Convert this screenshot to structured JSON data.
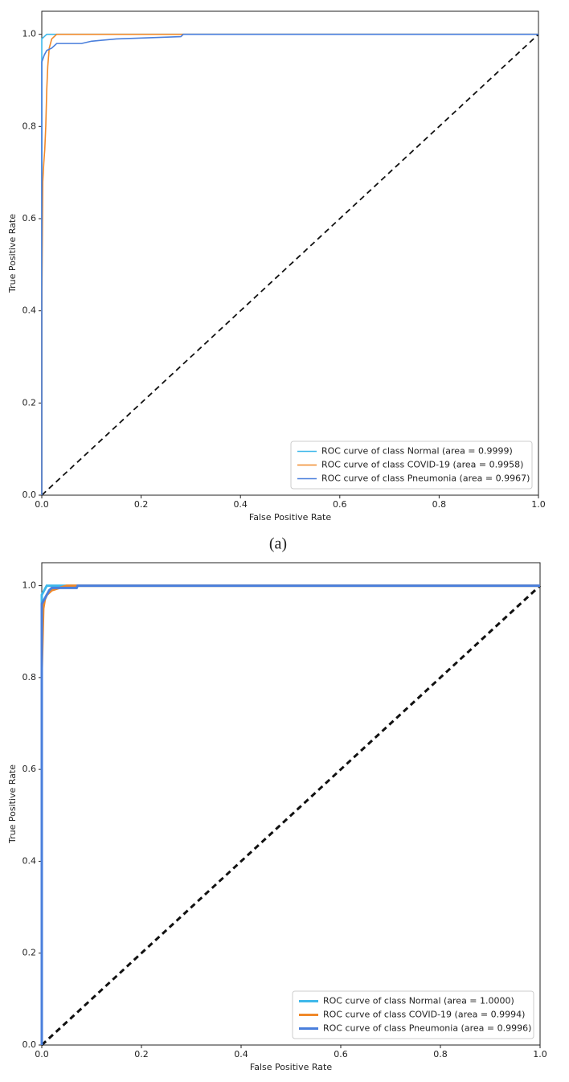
{
  "chart_data": [
    {
      "type": "line",
      "xlabel": "False Positive Rate",
      "ylabel": "True Positive Rate",
      "caption": "(a)",
      "xlim": [
        0,
        1
      ],
      "ylim": [
        0,
        1.05
      ],
      "xticks": [
        {
          "value": 0,
          "label": "0.0"
        },
        0.2,
        0.4,
        0.6,
        0.8,
        {
          "value": 1,
          "label": "1.0"
        }
      ],
      "yticks": [
        {
          "value": 0,
          "label": "0.0"
        },
        0.2,
        0.4,
        0.6,
        0.8,
        {
          "value": 1,
          "label": "1.0"
        }
      ],
      "legend": "lower right",
      "series": [
        {
          "name": "ROC curve of class Normal (area = 0.9999)",
          "color": "#3fb8ea",
          "x": [
            0,
            0,
            0.005,
            0.01,
            0.02,
            1
          ],
          "values": [
            0,
            0.99,
            0.995,
            1.0,
            1.0,
            1.0
          ]
        },
        {
          "name": "ROC curve of class COVID-19 (area = 0.9958)",
          "color": "#f0892a",
          "x": [
            0,
            0,
            0.002,
            0.004,
            0.006,
            0.008,
            0.01,
            0.012,
            0.015,
            0.02,
            0.025,
            0.03,
            0.16,
            1
          ],
          "values": [
            0,
            0.4,
            0.68,
            0.72,
            0.75,
            0.8,
            0.88,
            0.93,
            0.97,
            0.99,
            0.995,
            1.0,
            1.0,
            1.0
          ]
        },
        {
          "name": "ROC curve of class Pneumonia (area = 0.9967)",
          "color": "#4a7fdc",
          "x": [
            0,
            0,
            0.005,
            0.01,
            0.02,
            0.03,
            0.08,
            0.1,
            0.15,
            0.28,
            0.285,
            1
          ],
          "values": [
            0,
            0.94,
            0.955,
            0.965,
            0.97,
            0.98,
            0.98,
            0.985,
            0.99,
            0.995,
            1.0,
            1.0
          ]
        }
      ]
    },
    {
      "type": "line",
      "xlabel": "False Positive Rate",
      "ylabel": "True Positive Rate",
      "xlim": [
        0,
        1
      ],
      "ylim": [
        0,
        1.05
      ],
      "xticks": [
        {
          "value": 0,
          "label": "0.0"
        },
        0.2,
        0.4,
        0.6,
        0.8,
        {
          "value": 1,
          "label": "1.0"
        }
      ],
      "yticks": [
        {
          "value": 0,
          "label": "0.0"
        },
        0.2,
        0.4,
        0.6,
        0.8,
        {
          "value": 1,
          "label": "1.0"
        }
      ],
      "legend": "lower right",
      "series": [
        {
          "name": "ROC curve of class Normal (area = 1.0000)",
          "color": "#3fb8ea",
          "x": [
            0,
            0,
            0.005,
            0.01,
            1
          ],
          "values": [
            0,
            0.98,
            0.99,
            1.0,
            1.0
          ]
        },
        {
          "name": "ROC curve of class COVID-19 (area = 0.9994)",
          "color": "#f0892a",
          "x": [
            0,
            0,
            0.003,
            0.006,
            0.01,
            0.02,
            0.05,
            0.07,
            1
          ],
          "values": [
            0,
            0.82,
            0.95,
            0.97,
            0.98,
            0.99,
            1.0,
            1.0,
            1.0
          ]
        },
        {
          "name": "ROC curve of class Pneumonia (area = 0.9996)",
          "color": "#4a7fdc",
          "x": [
            0,
            0,
            0.005,
            0.01,
            0.015,
            0.02,
            0.07,
            0.072,
            1
          ],
          "values": [
            0,
            0.96,
            0.97,
            0.98,
            0.99,
            0.995,
            0.995,
            1.0,
            1.0
          ]
        }
      ]
    }
  ]
}
